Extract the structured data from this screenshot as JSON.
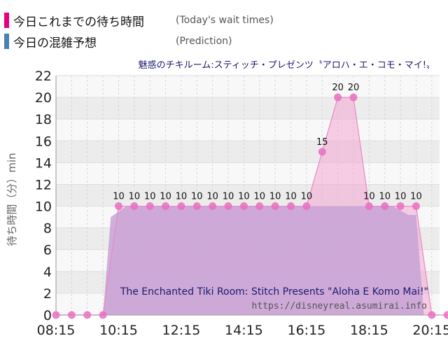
{
  "legend": {
    "actual_label": "今日これまでの待ち時間",
    "actual_sub": "(Today's wait times)",
    "prediction_label": "今日の混雑予想",
    "prediction_sub": "(Prediction)"
  },
  "colors": {
    "actual": "#e4007f",
    "prediction": "#4682b4",
    "actual_fill": "#f4a6d3",
    "prediction_fill": "#c7a3d6",
    "marker": "#ea6fc0"
  },
  "chart_data": {
    "type": "area",
    "title": "魅惑のチキルーム:スティッチ・プレゼンツ〝アロハ・エ・コモ・マイ!〟",
    "subtitle": "The Enchanted Tiki Room: Stitch Presents \"Aloha E Komo Mai!\"",
    "watermark": "https://disneyreal.asumirai.info",
    "ylabel": "待ち時間（分）min",
    "xlabel": "",
    "ylim": [
      0,
      22
    ],
    "yticks": [
      0,
      2,
      4,
      6,
      8,
      10,
      12,
      14,
      16,
      18,
      20,
      22
    ],
    "xlim": [
      "08:15",
      "20:30"
    ],
    "xticks": [
      "08:15",
      "10:15",
      "12:15",
      "14:15",
      "16:15",
      "18:15",
      "20:15"
    ],
    "grid": true,
    "series": [
      {
        "name": "今日これまでの待ち時間",
        "points": [
          [
            "08:15",
            0
          ],
          [
            "08:45",
            0
          ],
          [
            "09:15",
            0
          ],
          [
            "09:45",
            0
          ],
          [
            "10:15",
            10
          ],
          [
            "10:45",
            10
          ],
          [
            "11:15",
            10
          ],
          [
            "11:45",
            10
          ],
          [
            "12:15",
            10
          ],
          [
            "12:45",
            10
          ],
          [
            "13:15",
            10
          ],
          [
            "13:45",
            10
          ],
          [
            "14:15",
            10
          ],
          [
            "14:45",
            10
          ],
          [
            "15:15",
            10
          ],
          [
            "15:45",
            10
          ],
          [
            "16:15",
            10
          ],
          [
            "16:45",
            15
          ],
          [
            "17:15",
            20
          ],
          [
            "17:45",
            20
          ],
          [
            "18:15",
            10
          ],
          [
            "18:45",
            10
          ],
          [
            "19:15",
            10
          ],
          [
            "19:45",
            10
          ],
          [
            "20:15",
            0
          ],
          [
            "20:45",
            0
          ]
        ],
        "labels": [
          [
            "10:15",
            "10"
          ],
          [
            "10:45",
            "10"
          ],
          [
            "11:15",
            "10"
          ],
          [
            "11:45",
            "10"
          ],
          [
            "12:15",
            "10"
          ],
          [
            "12:45",
            "10"
          ],
          [
            "13:15",
            "10"
          ],
          [
            "13:45",
            "10"
          ],
          [
            "14:15",
            "10"
          ],
          [
            "14:45",
            "10"
          ],
          [
            "15:15",
            "10"
          ],
          [
            "15:45",
            "10"
          ],
          [
            "16:15",
            "10"
          ],
          [
            "16:45",
            "15"
          ],
          [
            "17:15",
            "20"
          ],
          [
            "17:45",
            "20"
          ],
          [
            "18:15",
            "10"
          ],
          [
            "18:45",
            "10"
          ],
          [
            "19:15",
            "10"
          ],
          [
            "19:45",
            "10"
          ]
        ]
      },
      {
        "name": "今日の混雑予想",
        "points": [
          [
            "09:45",
            0
          ],
          [
            "10:00",
            9
          ],
          [
            "10:30",
            10
          ],
          [
            "19:00",
            10
          ],
          [
            "19:30",
            9.2
          ],
          [
            "19:45",
            9.2
          ],
          [
            "20:00",
            0
          ]
        ]
      }
    ]
  }
}
